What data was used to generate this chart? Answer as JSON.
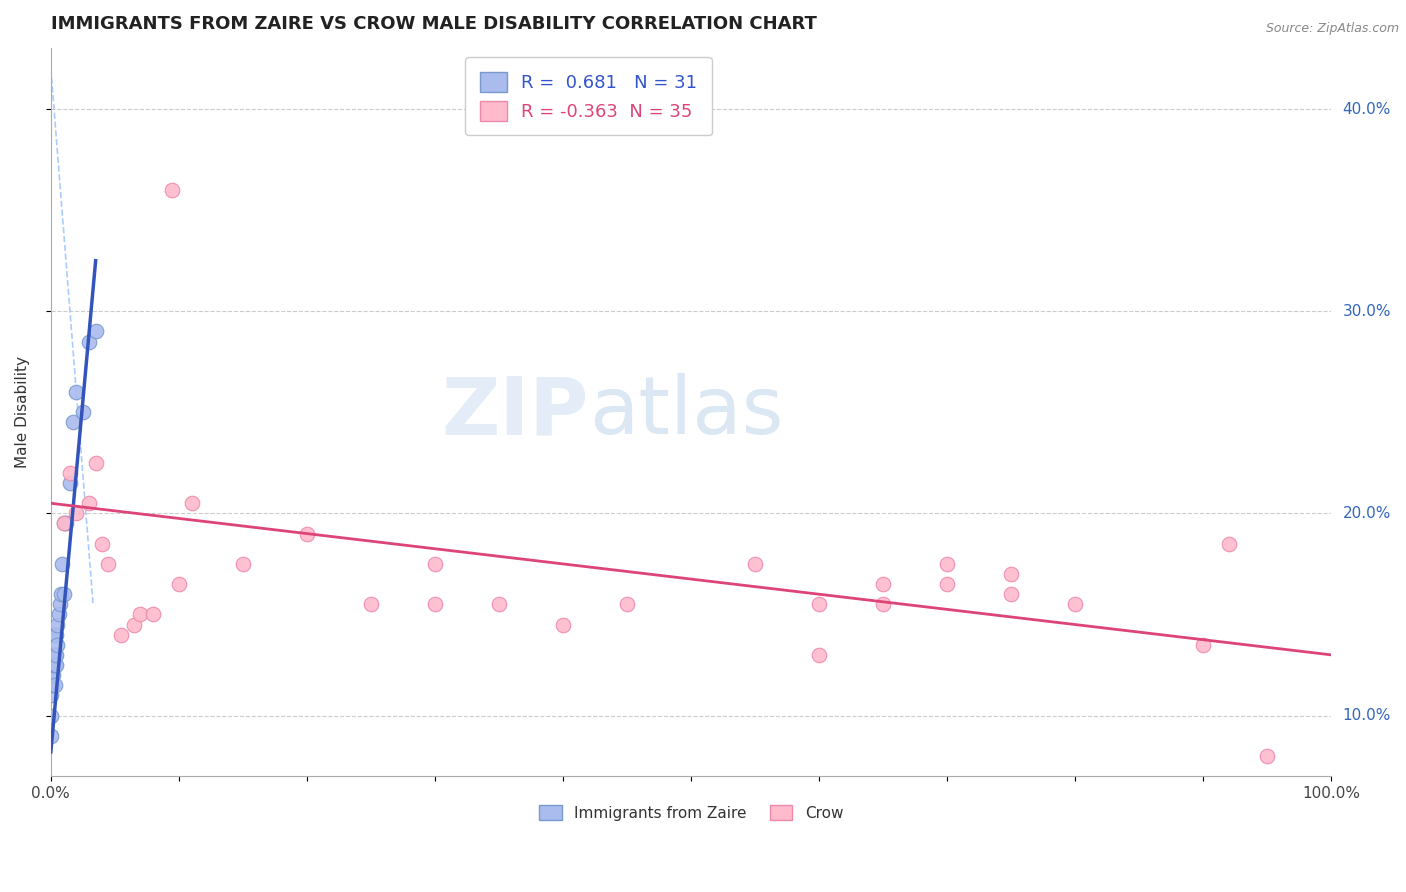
{
  "title": "IMMIGRANTS FROM ZAIRE VS CROW MALE DISABILITY CORRELATION CHART",
  "source": "Source: ZipAtlas.com",
  "ylabel": "Male Disability",
  "xlim": [
    0.0,
    1.0
  ],
  "ylim": [
    0.07,
    0.43
  ],
  "xtick_positions": [
    0.0,
    0.1,
    0.2,
    0.3,
    0.4,
    0.5,
    0.6,
    0.7,
    0.8,
    0.9,
    1.0
  ],
  "xtick_labels": [
    "0.0%",
    "",
    "",
    "",
    "",
    "",
    "",
    "",
    "",
    "",
    "100.0%"
  ],
  "ytick_positions": [
    0.1,
    0.2,
    0.3,
    0.4
  ],
  "ytick_labels_right": [
    "10.0%",
    "20.0%",
    "30.0%",
    "40.0%"
  ],
  "blue_R": 0.681,
  "blue_N": 31,
  "pink_R": -0.363,
  "pink_N": 35,
  "blue_scatter_x": [
    0.0,
    0.0,
    0.0,
    0.001,
    0.001,
    0.001,
    0.002,
    0.002,
    0.002,
    0.003,
    0.003,
    0.003,
    0.003,
    0.004,
    0.004,
    0.004,
    0.005,
    0.005,
    0.006,
    0.007,
    0.008,
    0.009,
    0.01,
    0.01,
    0.012,
    0.015,
    0.017,
    0.02,
    0.025,
    0.03,
    0.035
  ],
  "blue_scatter_y": [
    0.09,
    0.1,
    0.11,
    0.115,
    0.12,
    0.125,
    0.12,
    0.125,
    0.13,
    0.115,
    0.125,
    0.13,
    0.14,
    0.125,
    0.13,
    0.14,
    0.135,
    0.145,
    0.15,
    0.155,
    0.16,
    0.175,
    0.16,
    0.195,
    0.195,
    0.215,
    0.245,
    0.26,
    0.25,
    0.285,
    0.29
  ],
  "pink_scatter_x": [
    0.01,
    0.015,
    0.02,
    0.03,
    0.035,
    0.04,
    0.045,
    0.055,
    0.065,
    0.07,
    0.08,
    0.095,
    0.1,
    0.11,
    0.15,
    0.2,
    0.25,
    0.3,
    0.3,
    0.35,
    0.4,
    0.45,
    0.55,
    0.6,
    0.6,
    0.65,
    0.65,
    0.7,
    0.7,
    0.75,
    0.75,
    0.8,
    0.9,
    0.92,
    0.95
  ],
  "pink_scatter_y": [
    0.195,
    0.22,
    0.2,
    0.205,
    0.225,
    0.185,
    0.175,
    0.14,
    0.145,
    0.15,
    0.15,
    0.36,
    0.165,
    0.205,
    0.175,
    0.19,
    0.155,
    0.175,
    0.155,
    0.155,
    0.145,
    0.155,
    0.175,
    0.13,
    0.155,
    0.155,
    0.165,
    0.165,
    0.175,
    0.16,
    0.17,
    0.155,
    0.135,
    0.185,
    0.08
  ],
  "blue_line_x": [
    0.0,
    0.035
  ],
  "blue_line_y": [
    0.082,
    0.325
  ],
  "pink_line_x": [
    0.0,
    1.0
  ],
  "pink_line_y": [
    0.205,
    0.13
  ],
  "dash_line_x": [
    0.0,
    0.033
  ],
  "dash_line_y": [
    0.42,
    0.155
  ],
  "blue_line_color": "#3355bb",
  "pink_line_color": "#dd4477",
  "blue_scatter_color": "#aabbee",
  "pink_scatter_color": "#ffbbcc",
  "blue_scatter_edge": "#7799cc",
  "pink_scatter_edge": "#ee88aa",
  "grid_color": "#cccccc",
  "background_color": "#ffffff",
  "title_fontsize": 13,
  "axis_label_fontsize": 11,
  "tick_fontsize": 11
}
